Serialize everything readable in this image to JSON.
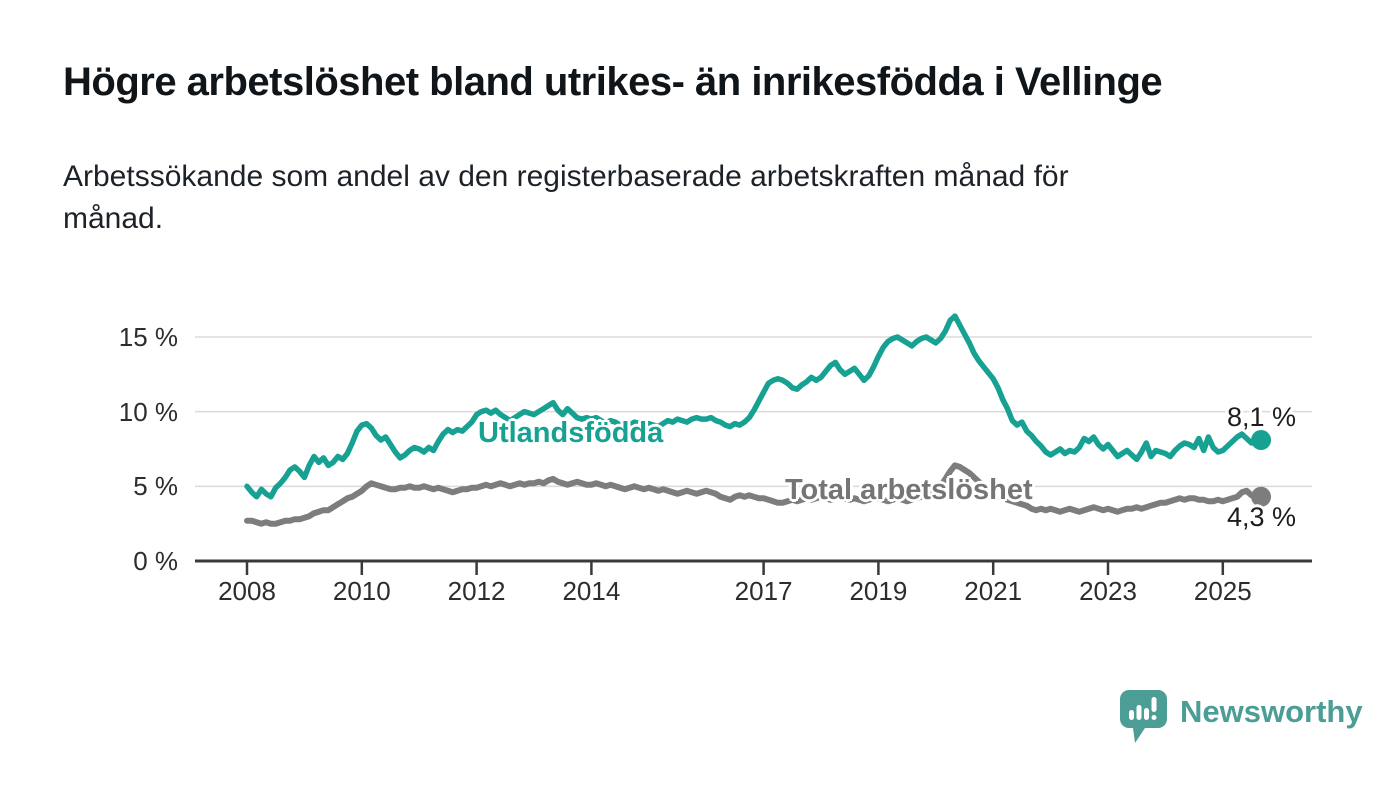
{
  "header": {
    "title": "Högre arbetslöshet bland utrikes- än inrikesfödda i Vellinge",
    "subtitle": "Arbetssökande som andel av den registerbaserade arbetskraften månad för månad.",
    "subtitle_lines": [
      "Arbetssökande som andel av den registerbaserade arbetskraften månad för",
      "månad."
    ]
  },
  "colors": {
    "foreign_born_line": "#16a193",
    "total_line": "#7d7d7d",
    "grid": "#dadada",
    "axis": "#3a3a3a",
    "tick_text": "#2d2d2d",
    "annotation_text": "#1d1d1d",
    "logo": "#4b9d95"
  },
  "chart_data": {
    "type": "line",
    "title": "Högre arbetslöshet bland utrikes- än inrikesfödda i Vellinge",
    "subtitle": "Arbetssökande som andel av den registerbaserade arbetskraften månad för månad.",
    "unit": "%",
    "start_year": 2008,
    "points_per_year": 12,
    "end_point": "2025-09",
    "x_axis": {
      "tick_labels": [
        "2008",
        "2010",
        "2012",
        "2014",
        "2017",
        "2019",
        "2021",
        "2023",
        "2025"
      ]
    },
    "y_axis": {
      "tick_labels": [
        "0 %",
        "5 %",
        "10 %",
        "15 %"
      ],
      "tick_values": [
        0,
        5,
        10,
        15
      ],
      "range": [
        0,
        17.5
      ],
      "grid": true
    },
    "legend_position": "inline-labels",
    "series": [
      {
        "name": "Utlandsfödda",
        "color": "#16a193",
        "end_label": "8,1 %",
        "last_value": 8.1,
        "values": [
          5.0,
          4.6,
          4.3,
          4.8,
          4.5,
          4.3,
          4.9,
          5.2,
          5.6,
          6.1,
          6.3,
          6.0,
          5.6,
          6.4,
          7.0,
          6.6,
          6.9,
          6.4,
          6.6,
          7.0,
          6.8,
          7.2,
          7.9,
          8.7,
          9.1,
          9.2,
          8.9,
          8.4,
          8.1,
          8.3,
          7.8,
          7.3,
          6.9,
          7.1,
          7.4,
          7.6,
          7.5,
          7.3,
          7.6,
          7.4,
          8.0,
          8.5,
          8.8,
          8.6,
          8.8,
          8.7,
          9.0,
          9.3,
          9.8,
          10.0,
          10.1,
          9.9,
          10.1,
          9.8,
          9.6,
          9.4,
          9.6,
          9.8,
          10.0,
          9.9,
          9.8,
          10.0,
          10.2,
          10.4,
          10.6,
          10.1,
          9.8,
          10.2,
          9.9,
          9.6,
          9.5,
          9.6,
          9.5,
          9.6,
          9.4,
          9.2,
          9.4,
          9.3,
          9.1,
          8.9,
          9.1,
          9.3,
          9.2,
          9.1,
          9.2,
          9.1,
          9.0,
          9.2,
          9.4,
          9.3,
          9.5,
          9.4,
          9.3,
          9.5,
          9.6,
          9.5,
          9.5,
          9.6,
          9.4,
          9.3,
          9.1,
          9.0,
          9.2,
          9.1,
          9.3,
          9.6,
          10.1,
          10.7,
          11.3,
          11.9,
          12.1,
          12.2,
          12.1,
          11.9,
          11.6,
          11.5,
          11.8,
          12.0,
          12.3,
          12.1,
          12.3,
          12.7,
          13.1,
          13.3,
          12.8,
          12.5,
          12.7,
          12.9,
          12.5,
          12.1,
          12.4,
          13.0,
          13.7,
          14.3,
          14.7,
          14.9,
          15.0,
          14.8,
          14.6,
          14.4,
          14.7,
          14.9,
          15.0,
          14.8,
          14.6,
          14.9,
          15.4,
          16.1,
          16.4,
          15.8,
          15.2,
          14.6,
          13.9,
          13.4,
          13.0,
          12.6,
          12.2,
          11.6,
          10.8,
          10.2,
          9.4,
          9.1,
          9.3,
          8.7,
          8.4,
          8.0,
          7.7,
          7.3,
          7.1,
          7.3,
          7.5,
          7.2,
          7.4,
          7.3,
          7.6,
          8.2,
          8.0,
          8.3,
          7.8,
          7.5,
          7.8,
          7.4,
          7.0,
          7.2,
          7.4,
          7.1,
          6.8,
          7.3,
          7.9,
          7.0,
          7.4,
          7.3,
          7.2,
          7.0,
          7.4,
          7.7,
          7.9,
          7.8,
          7.6,
          8.2,
          7.4,
          8.3,
          7.6,
          7.3,
          7.4,
          7.7,
          8.0,
          8.3,
          8.5,
          8.2,
          7.9,
          8.2,
          8.1
        ]
      },
      {
        "name": "Total arbetslöshet",
        "color": "#7d7d7d",
        "end_label": "4,3 %",
        "last_value": 4.3,
        "values": [
          2.7,
          2.7,
          2.6,
          2.5,
          2.6,
          2.5,
          2.5,
          2.6,
          2.7,
          2.7,
          2.8,
          2.8,
          2.9,
          3.0,
          3.2,
          3.3,
          3.4,
          3.4,
          3.6,
          3.8,
          4.0,
          4.2,
          4.3,
          4.5,
          4.7,
          5.0,
          5.2,
          5.1,
          5.0,
          4.9,
          4.8,
          4.8,
          4.9,
          4.9,
          5.0,
          4.9,
          4.9,
          5.0,
          4.9,
          4.8,
          4.9,
          4.8,
          4.7,
          4.6,
          4.7,
          4.8,
          4.8,
          4.9,
          4.9,
          5.0,
          5.1,
          5.0,
          5.1,
          5.2,
          5.1,
          5.0,
          5.1,
          5.2,
          5.1,
          5.2,
          5.2,
          5.3,
          5.2,
          5.4,
          5.5,
          5.3,
          5.2,
          5.1,
          5.2,
          5.3,
          5.2,
          5.1,
          5.1,
          5.2,
          5.1,
          5.0,
          5.1,
          5.0,
          4.9,
          4.8,
          4.9,
          5.0,
          4.9,
          4.8,
          4.9,
          4.8,
          4.7,
          4.8,
          4.7,
          4.6,
          4.5,
          4.6,
          4.7,
          4.6,
          4.5,
          4.6,
          4.7,
          4.6,
          4.5,
          4.3,
          4.2,
          4.1,
          4.3,
          4.4,
          4.3,
          4.4,
          4.3,
          4.2,
          4.2,
          4.1,
          4.0,
          3.9,
          3.9,
          4.0,
          4.1,
          4.0,
          4.1,
          4.2,
          4.1,
          4.2,
          4.3,
          4.2,
          4.1,
          4.2,
          4.3,
          4.2,
          4.1,
          4.2,
          4.1,
          4.0,
          4.1,
          4.2,
          4.2,
          4.1,
          4.0,
          4.1,
          4.2,
          4.1,
          4.0,
          4.1,
          4.2,
          4.3,
          4.4,
          4.5,
          4.7,
          5.0,
          5.5,
          6.0,
          6.4,
          6.3,
          6.1,
          5.9,
          5.6,
          5.3,
          5.0,
          4.8,
          4.6,
          4.4,
          4.2,
          4.1,
          4.0,
          3.9,
          3.8,
          3.7,
          3.5,
          3.4,
          3.5,
          3.4,
          3.5,
          3.4,
          3.3,
          3.4,
          3.5,
          3.4,
          3.3,
          3.4,
          3.5,
          3.6,
          3.5,
          3.4,
          3.5,
          3.4,
          3.3,
          3.4,
          3.5,
          3.5,
          3.6,
          3.5,
          3.6,
          3.7,
          3.8,
          3.9,
          3.9,
          4.0,
          4.1,
          4.2,
          4.1,
          4.2,
          4.2,
          4.1,
          4.1,
          4.0,
          4.0,
          4.1,
          4.0,
          4.1,
          4.2,
          4.3,
          4.6,
          4.7,
          4.4,
          4.3,
          4.3
        ]
      }
    ]
  },
  "footer": {
    "brand": "Newsworthy",
    "logo_icon": "bar-chart-speech-bubble"
  }
}
